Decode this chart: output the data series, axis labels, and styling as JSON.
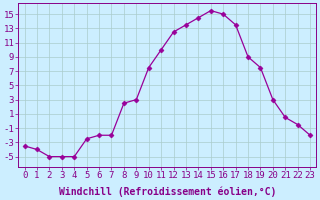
{
  "x": [
    0,
    1,
    2,
    3,
    4,
    5,
    6,
    7,
    8,
    9,
    10,
    11,
    12,
    13,
    14,
    15,
    16,
    17,
    18,
    19,
    20,
    21,
    22,
    23
  ],
  "y": [
    -3.5,
    -4.0,
    -5.0,
    -5.0,
    -5.0,
    -2.5,
    -2.0,
    -2.0,
    2.5,
    3.0,
    7.5,
    10.0,
    12.5,
    13.5,
    14.5,
    15.5,
    15.0,
    13.5,
    9.0,
    7.5,
    3.0,
    0.5,
    -0.5,
    -2.0
  ],
  "line_color": "#990099",
  "marker": "D",
  "marker_size": 2.5,
  "background_color": "#cceeff",
  "grid_color": "#aacccc",
  "xlabel": "Windchill (Refroidissement éolien,°C)",
  "xlabel_fontsize": 7,
  "xtick_labels": [
    "0",
    "1",
    "2",
    "3",
    "4",
    "5",
    "6",
    "7",
    "8",
    "9",
    "10",
    "11",
    "12",
    "13",
    "14",
    "15",
    "16",
    "17",
    "18",
    "19",
    "20",
    "21",
    "22",
    "23"
  ],
  "ytick_values": [
    -5,
    -3,
    -1,
    1,
    3,
    5,
    7,
    9,
    11,
    13,
    15
  ],
  "ylim": [
    -6.5,
    16.5
  ],
  "xlim": [
    -0.5,
    23.5
  ],
  "tick_label_fontsize": 6.5,
  "tick_color": "#880088",
  "spine_color": "#880088"
}
